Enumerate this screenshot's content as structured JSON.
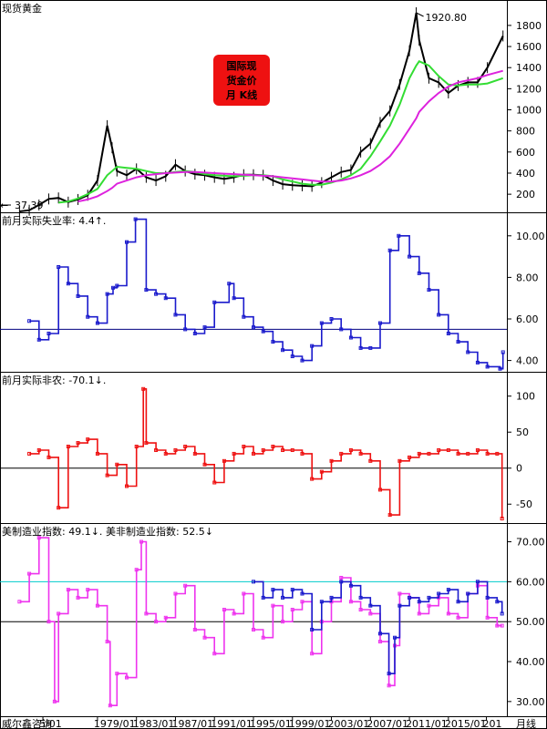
{
  "colors": {
    "gold": "#000000",
    "ma_short": "#33dd33",
    "ma_long": "#dd22dd",
    "unemployment": "#1a1acc",
    "nfp": "#ee1111",
    "mfg": "#ee33ee",
    "nonmfg": "#1a1acc",
    "ref_line": "#000080",
    "ref_cyan": "#00cccc",
    "badge_bg": "#ee1111",
    "badge_text": "#ffee00",
    "arrow_up": "#00aaff",
    "arrow_down": "#ee1111"
  },
  "chart_data": [
    {
      "type": "line",
      "title": "现货黄金",
      "badge": [
        "国际现",
        "货金价",
        "月 K线"
      ],
      "annotation_high": "1920.80",
      "annotation_low": "37.39",
      "ylim": [
        37,
        1920
      ],
      "yticks": [
        "200",
        "400",
        "600",
        "800",
        "1000",
        "1200",
        "1400",
        "1600",
        "1800"
      ],
      "x": [
        1971,
        1972,
        1973,
        1974,
        1975,
        1976,
        1977,
        1978,
        1979,
        1980,
        1980.5,
        1981,
        1982,
        1983,
        1984,
        1985,
        1986,
        1987,
        1988,
        1989,
        1990,
        1991,
        1992,
        1993,
        1994,
        1995,
        1996,
        1997,
        1998,
        1999,
        2000,
        2001,
        2002,
        2003,
        2004,
        2005,
        2006,
        2007,
        2008,
        2009,
        2010,
        2011,
        2011.7,
        2012,
        2013,
        2014,
        2015,
        2016,
        2017,
        2018,
        2019,
        2020.6
      ],
      "series": [
        {
          "name": "Gold",
          "values": [
            37.4,
            48,
            98,
            155,
            165,
            125,
            150,
            190,
            330,
            850,
            640,
            420,
            380,
            440,
            360,
            330,
            370,
            480,
            420,
            390,
            380,
            360,
            345,
            360,
            385,
            385,
            380,
            330,
            295,
            285,
            280,
            275,
            310,
            360,
            410,
            430,
            600,
            680,
            880,
            990,
            1240,
            1560,
            1920,
            1660,
            1300,
            1260,
            1160,
            1230,
            1260,
            1260,
            1400,
            1700
          ]
        },
        {
          "name": "MA short",
          "values": [
            null,
            null,
            null,
            null,
            120,
            130,
            160,
            200,
            250,
            380,
            420,
            460,
            450,
            440,
            420,
            400,
            400,
            410,
            420,
            410,
            390,
            380,
            375,
            370,
            375,
            380,
            380,
            370,
            340,
            320,
            300,
            290,
            290,
            310,
            340,
            380,
            440,
            560,
            700,
            850,
            1050,
            1300,
            1420,
            1460,
            1420,
            1320,
            1240,
            1230,
            1240,
            1240,
            1250,
            1300
          ]
        },
        {
          "name": "MA long",
          "values": [
            null,
            null,
            null,
            null,
            null,
            null,
            130,
            150,
            180,
            230,
            260,
            300,
            330,
            360,
            380,
            390,
            400,
            405,
            410,
            410,
            405,
            400,
            395,
            390,
            385,
            380,
            375,
            370,
            360,
            350,
            340,
            330,
            320,
            320,
            330,
            350,
            380,
            420,
            480,
            560,
            680,
            820,
            920,
            980,
            1080,
            1160,
            1220,
            1260,
            1280,
            1300,
            1330,
            1370
          ]
        }
      ]
    },
    {
      "type": "line",
      "title": "前月实际失业率: 4.4↑.",
      "ylim": [
        3.5,
        11
      ],
      "yticks": [
        "4.00",
        "6.00",
        "8.00",
        "10.00"
      ],
      "reference": 5.5,
      "x": [
        1972,
        1973,
        1974,
        1975,
        1976,
        1977,
        1978,
        1979,
        1980,
        1980.6,
        1981,
        1982,
        1982.9,
        1984,
        1985,
        1986,
        1987,
        1988,
        1989,
        1990,
        1991,
        1992.5,
        1993,
        1994,
        1995,
        1996,
        1997,
        1998,
        1999,
        2000,
        2001,
        2002,
        2003,
        2004,
        2005,
        2006,
        2007,
        2008,
        2009,
        2009.9,
        2011,
        2012,
        2013,
        2014,
        2015,
        2016,
        2017,
        2018,
        2019,
        2020.3,
        2020.6
      ],
      "series": [
        {
          "name": "Unemployment",
          "values": [
            5.9,
            5.0,
            5.3,
            8.5,
            7.7,
            7.1,
            6.1,
            5.8,
            7.2,
            7.5,
            7.6,
            9.7,
            10.8,
            7.4,
            7.2,
            7.0,
            6.2,
            5.5,
            5.3,
            5.6,
            6.8,
            7.7,
            7.0,
            6.1,
            5.6,
            5.4,
            4.9,
            4.5,
            4.2,
            4.0,
            4.7,
            5.8,
            6.0,
            5.5,
            5.1,
            4.6,
            4.6,
            5.8,
            9.3,
            10.0,
            9.0,
            8.2,
            7.4,
            6.2,
            5.3,
            4.9,
            4.4,
            3.9,
            3.7,
            3.6,
            4.4
          ]
        }
      ]
    },
    {
      "type": "line",
      "title": "前月实际非农: -70.1↓.",
      "ylim": [
        -75,
        130
      ],
      "yticks": [
        "-50",
        "0",
        "50",
        "100"
      ],
      "reference": 0,
      "x": [
        1972,
        1973,
        1974,
        1975,
        1976,
        1977,
        1978,
        1979,
        1980,
        1981,
        1982,
        1983,
        1983.7,
        1984,
        1985,
        1986,
        1987,
        1988,
        1989,
        1990,
        1991,
        1992,
        1993,
        1994,
        1995,
        1996,
        1997,
        1998,
        1999,
        2000,
        2001,
        2002,
        2003,
        2004,
        2005,
        2006,
        2007,
        2008,
        2009,
        2010,
        2011,
        2012,
        2013,
        2014,
        2015,
        2016,
        2017,
        2018,
        2019,
        2020,
        2020.5
      ],
      "series": [
        {
          "name": "Nonfarm payrolls",
          "values": [
            20,
            25,
            15,
            -55,
            30,
            35,
            40,
            20,
            -10,
            5,
            -25,
            30,
            110,
            35,
            25,
            20,
            25,
            30,
            20,
            5,
            -20,
            10,
            20,
            30,
            20,
            25,
            30,
            25,
            25,
            20,
            -15,
            -5,
            10,
            20,
            25,
            20,
            10,
            -30,
            -65,
            10,
            15,
            20,
            20,
            25,
            25,
            20,
            20,
            25,
            20,
            20,
            -70
          ]
        }
      ]
    },
    {
      "type": "line",
      "title": "美制造业指数: 49.1↓.",
      "title2": "美非制造业指数: 52.5↓",
      "ylim": [
        27,
        74
      ],
      "yticks": [
        "30.00",
        "40.00",
        "50.00",
        "60.00",
        "70.00"
      ],
      "reference": 50,
      "reference2": 60,
      "x_tick_labels": [
        "5/01",
        "1979/01",
        "1983/01",
        "1987/01",
        "1991/01",
        "1995/01",
        "1999/01",
        "2003/01",
        "2007/01",
        "2011/01",
        "2015/01",
        "201"
      ],
      "footer_left": "威尔鑫咨询",
      "footer_right": "月线",
      "x": [
        1971,
        1972,
        1973,
        1974,
        1974.6,
        1975,
        1976,
        1977,
        1978,
        1979,
        1980,
        1980.3,
        1981,
        1982,
        1983,
        1983.5,
        1984,
        1985,
        1986,
        1987,
        1988,
        1989,
        1990,
        1991,
        1992,
        1993,
        1994,
        1995,
        1996,
        1997,
        1998,
        1999,
        2000,
        2001,
        2002,
        2003,
        2004,
        2005,
        2006,
        2007,
        2008,
        2008.9,
        2009.5,
        2010,
        2011,
        2012,
        2013,
        2014,
        2015,
        2016,
        2017,
        2018,
        2019,
        2020,
        2020.5
      ],
      "series": [
        {
          "name": "Manufacturing",
          "values": [
            55,
            62,
            71,
            50,
            30,
            52,
            58,
            56,
            58,
            54,
            45,
            29,
            37,
            36,
            63,
            70,
            52,
            50,
            51,
            57,
            59,
            48,
            46,
            42,
            53,
            52,
            57,
            48,
            46,
            54,
            50,
            53,
            55,
            42,
            50,
            55,
            61,
            55,
            53,
            52,
            45,
            34,
            44,
            57,
            56,
            52,
            54,
            56,
            52,
            51,
            57,
            59,
            51,
            49,
            49
          ]
        },
        {
          "name": "Non-manufacturing",
          "values": [
            null,
            null,
            null,
            null,
            null,
            null,
            null,
            null,
            null,
            null,
            null,
            null,
            null,
            null,
            null,
            null,
            null,
            null,
            null,
            null,
            null,
            null,
            null,
            null,
            null,
            null,
            null,
            60,
            56,
            58,
            56,
            58,
            57,
            48,
            55,
            56,
            60,
            59,
            56,
            54,
            47,
            37,
            46,
            54,
            56,
            55,
            56,
            57,
            58,
            55,
            57,
            60,
            56,
            55,
            52
          ]
        }
      ]
    }
  ]
}
